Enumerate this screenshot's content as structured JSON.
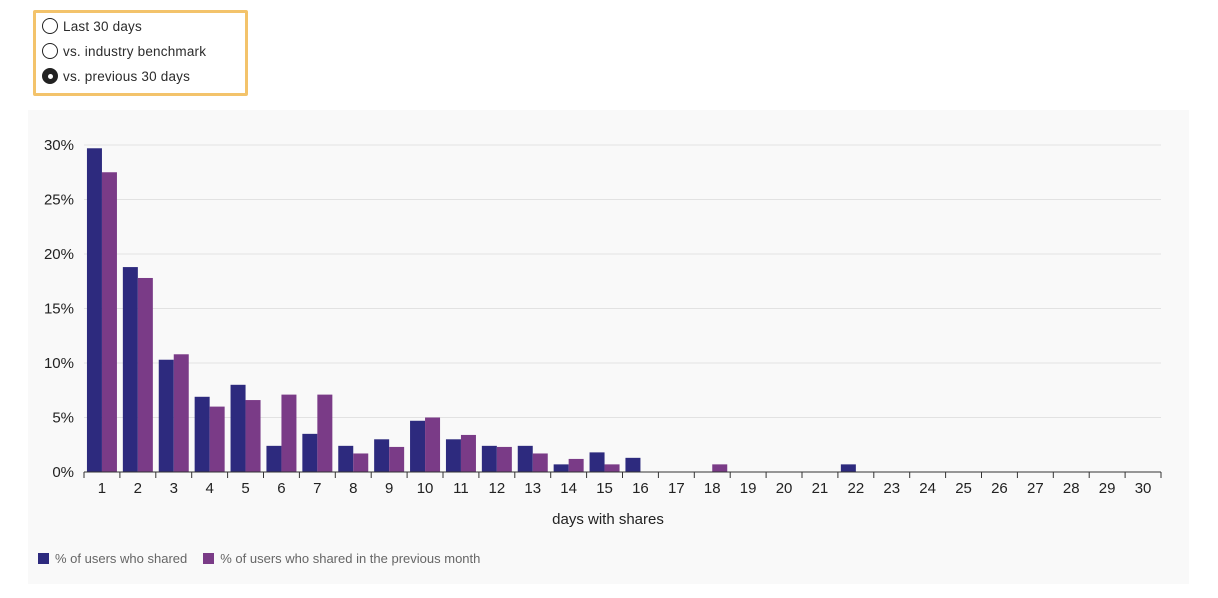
{
  "controls": {
    "options": [
      {
        "label": "Last 30 days",
        "checked": false
      },
      {
        "label": "vs. industry benchmark",
        "checked": false
      },
      {
        "label": "vs. previous 30 days",
        "checked": true
      }
    ]
  },
  "chart_data": {
    "type": "bar",
    "xlabel": "days with shares",
    "ylabel": "",
    "ylim": [
      0,
      30
    ],
    "yticks": [
      "0%",
      "5%",
      "10%",
      "15%",
      "20%",
      "25%",
      "30%"
    ],
    "grid": true,
    "legend_position": "bottom-left",
    "categories": [
      "1",
      "2",
      "3",
      "4",
      "5",
      "6",
      "7",
      "8",
      "9",
      "10",
      "11",
      "12",
      "13",
      "14",
      "15",
      "16",
      "17",
      "18",
      "19",
      "20",
      "21",
      "22",
      "23",
      "24",
      "25",
      "26",
      "27",
      "28",
      "29",
      "30"
    ],
    "series": [
      {
        "name": "% of users who shared",
        "color": "#2d2a7e",
        "values": [
          29.7,
          18.8,
          10.3,
          6.9,
          8.0,
          2.4,
          3.5,
          2.4,
          3.0,
          4.7,
          3.0,
          2.4,
          2.4,
          0.7,
          1.8,
          1.3,
          0,
          0,
          0,
          0,
          0,
          0.7,
          0,
          0,
          0,
          0,
          0,
          0,
          0,
          0
        ]
      },
      {
        "name": "% of users who shared in the previous month",
        "color": "#7a3b87",
        "values": [
          27.5,
          17.8,
          10.8,
          6.0,
          6.6,
          7.1,
          7.1,
          1.7,
          2.3,
          5.0,
          3.4,
          2.3,
          1.7,
          1.2,
          0.7,
          0,
          0,
          0.7,
          0,
          0,
          0,
          0,
          0,
          0,
          0,
          0,
          0,
          0,
          0,
          0
        ]
      }
    ]
  }
}
